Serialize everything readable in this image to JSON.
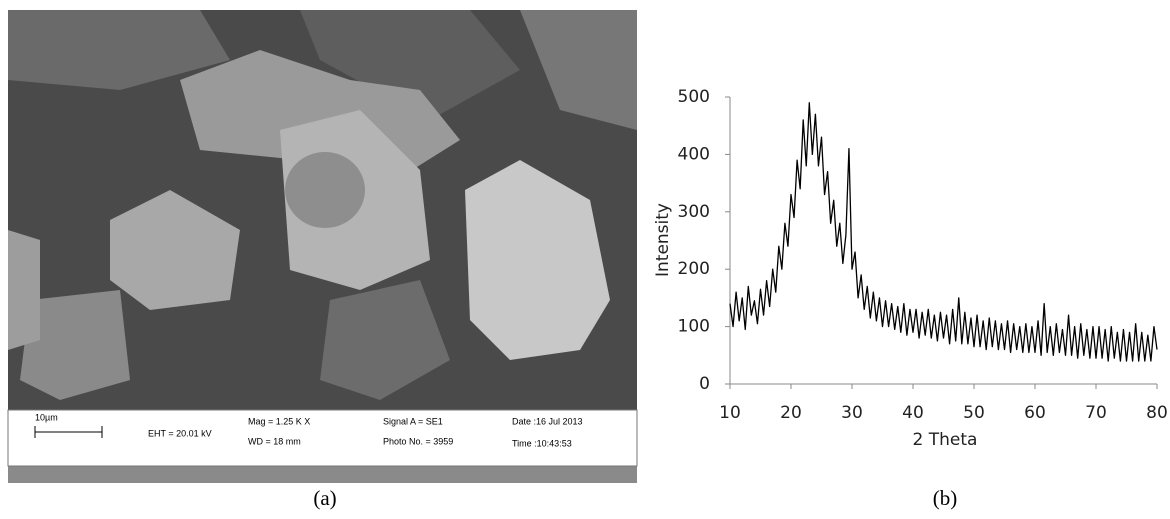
{
  "figure_a": {
    "scale_bar": "10µm",
    "eht": "EHT = 20.01 kV",
    "mag": "Mag =  1.25 K X",
    "wd": "WD =  18 mm",
    "signal": "Signal A = SE1",
    "photo": "Photo No. = 3959",
    "date": "Date :16 Jul 2013",
    "time": "Time :10:43:53",
    "caption": "(a)"
  },
  "chart_data": {
    "type": "line",
    "caption": "(b)",
    "x_label": "2 Theta",
    "y_label": "Intensity",
    "color": "#000000",
    "xlim": [
      10,
      80
    ],
    "ylim": [
      0,
      500
    ],
    "xticks": [
      10,
      20,
      30,
      40,
      50,
      60,
      70,
      80
    ],
    "yticks": [
      0,
      100,
      200,
      300,
      400,
      500
    ],
    "x": [
      10,
      10.5,
      11,
      11.5,
      12,
      12.5,
      13,
      13.5,
      14,
      14.5,
      15,
      15.5,
      16,
      16.5,
      17,
      17.5,
      18,
      18.5,
      19,
      19.5,
      20,
      20.5,
      21,
      21.5,
      22,
      22.5,
      23,
      23.5,
      24,
      24.5,
      25,
      25.5,
      26,
      26.5,
      27,
      27.5,
      28,
      28.5,
      29,
      29.5,
      30,
      30.5,
      31,
      31.5,
      32,
      32.5,
      33,
      33.5,
      34,
      34.5,
      35,
      35.5,
      36,
      36.5,
      37,
      37.5,
      38,
      38.5,
      39,
      39.5,
      40,
      40.5,
      41,
      41.5,
      42,
      42.5,
      43,
      43.5,
      44,
      44.5,
      45,
      45.5,
      46,
      46.5,
      47,
      47.5,
      48,
      48.5,
      49,
      49.5,
      50,
      50.5,
      51,
      51.5,
      52,
      52.5,
      53,
      53.5,
      54,
      54.5,
      55,
      55.5,
      56,
      56.5,
      57,
      57.5,
      58,
      58.5,
      59,
      59.5,
      60,
      60.5,
      61,
      61.5,
      62,
      62.5,
      63,
      63.5,
      64,
      64.5,
      65,
      65.5,
      66,
      66.5,
      67,
      67.5,
      68,
      68.5,
      69,
      69.5,
      70,
      70.5,
      71,
      71.5,
      72,
      72.5,
      73,
      73.5,
      74,
      74.5,
      75,
      75.5,
      76,
      76.5,
      77,
      77.5,
      78,
      78.5,
      79,
      79.5,
      80
    ],
    "values": [
      140,
      100,
      160,
      110,
      150,
      95,
      170,
      120,
      145,
      105,
      165,
      120,
      180,
      135,
      200,
      160,
      240,
      200,
      280,
      240,
      330,
      290,
      390,
      340,
      460,
      380,
      490,
      400,
      470,
      380,
      430,
      330,
      370,
      280,
      320,
      240,
      280,
      210,
      260,
      410,
      200,
      230,
      150,
      190,
      130,
      170,
      115,
      160,
      110,
      150,
      100,
      145,
      100,
      140,
      95,
      135,
      90,
      140,
      85,
      130,
      90,
      130,
      80,
      125,
      85,
      130,
      80,
      120,
      75,
      125,
      80,
      120,
      70,
      130,
      75,
      150,
      70,
      125,
      70,
      115,
      65,
      120,
      65,
      110,
      60,
      115,
      65,
      110,
      60,
      105,
      60,
      110,
      55,
      105,
      60,
      100,
      55,
      105,
      55,
      100,
      55,
      110,
      50,
      140,
      55,
      100,
      50,
      105,
      55,
      95,
      50,
      120,
      50,
      100,
      45,
      105,
      50,
      95,
      45,
      100,
      45,
      100,
      45,
      95,
      40,
      100,
      45,
      90,
      40,
      95,
      40,
      90,
      40,
      105,
      40,
      90,
      40,
      85,
      40,
      100,
      60
    ]
  }
}
